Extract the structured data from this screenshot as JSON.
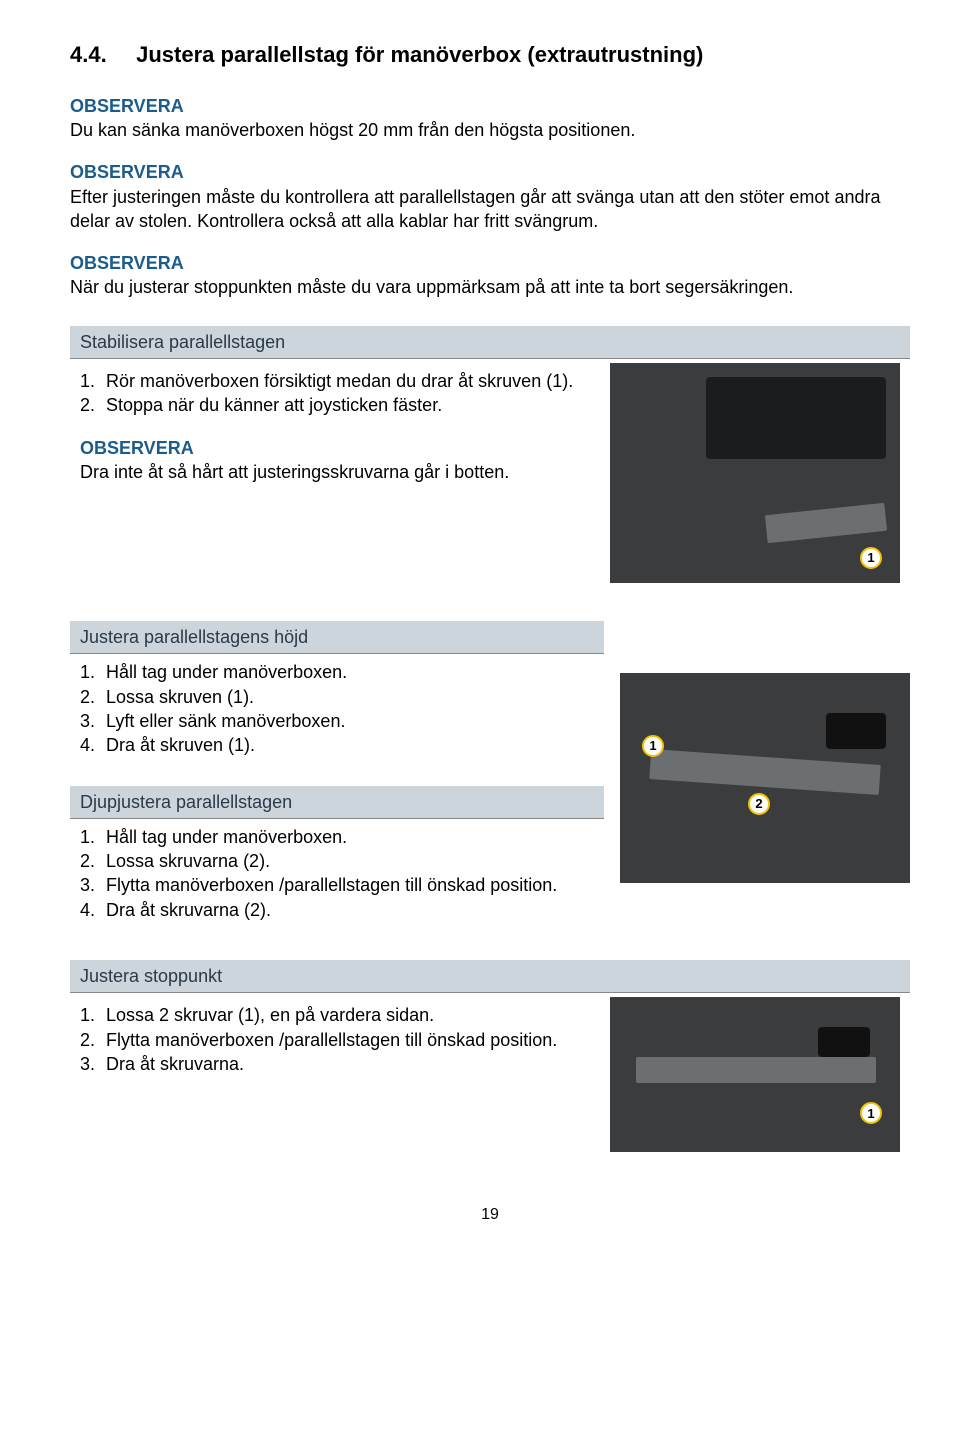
{
  "heading": {
    "number": "4.4.",
    "title": "Justera parallellstag för manöverbox (extrautrustning)"
  },
  "notices": [
    {
      "label": "OBSERVERA",
      "text": "Du kan sänka manöverboxen högst 20 mm från den högsta positionen."
    },
    {
      "label": "OBSERVERA",
      "text": "Efter justeringen måste du kontrollera att parallellstagen går att svänga utan att den stöter emot andra delar av stolen. Kontrollera också att alla kablar har fritt svängrum."
    },
    {
      "label": "OBSERVERA",
      "text": "När du justerar stoppunkten måste du vara uppmärksam på att inte ta bort segersäkringen."
    }
  ],
  "groups": [
    {
      "title": "Stabilisera parallellstagen",
      "steps": [
        "Rör manöverboxen försiktigt medan du drar åt skruven (1).",
        "Stoppa när du känner att joysticken fäster."
      ],
      "notice": {
        "label": "OBSERVERA",
        "text": "Dra inte åt så hårt att justeringsskruvarna går i botten."
      },
      "callouts": [
        "1"
      ]
    },
    {
      "title": "Justera parallellstagens höjd",
      "steps": [
        "Håll tag under manöverboxen.",
        "Lossa skruven (1).",
        "Lyft eller sänk manöverboxen.",
        "Dra åt skruven (1)."
      ],
      "callouts": [
        "1",
        "2"
      ]
    },
    {
      "title": "Djupjustera parallellstagen",
      "steps": [
        "Håll tag under manöverboxen.",
        "Lossa skruvarna (2).",
        "Flytta manöverboxen /parallellstagen till önskad position.",
        "Dra åt skruvarna (2)."
      ]
    },
    {
      "title": "Justera stoppunkt",
      "steps": [
        "Lossa 2 skruvar (1), en på vardera sidan.",
        "Flytta manöverboxen /parallellstagen till önskad position.",
        "Dra åt skruvarna."
      ],
      "callouts": [
        "1"
      ]
    }
  ],
  "pageNumber": "19",
  "colors": {
    "accent": "#1b5c8c",
    "headerBg": "#cdd5dc",
    "headerText": "#2a3a48",
    "calloutBorder": "#f2c300"
  }
}
